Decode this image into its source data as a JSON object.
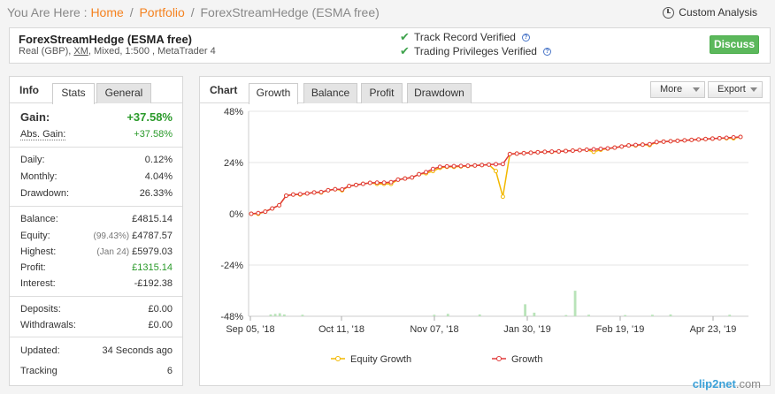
{
  "breadcrumb": {
    "prefix": "You Are Here :",
    "home": "Home",
    "portfolio": "Portfolio",
    "current": "ForexStreamHedge (ESMA free)",
    "sep": "/"
  },
  "custom_analysis": "Custom Analysis",
  "account": {
    "name": "ForexStreamHedge (ESMA free)",
    "info_prefix": "Real (GBP), ",
    "broker": "XM",
    "info_suffix": ", Mixed, 1:500 , MetaTrader 4"
  },
  "verified": {
    "track_record": "Track Record Verified",
    "trading_privileges": "Trading Privileges Verified",
    "help": "?"
  },
  "discuss_label": "Discuss",
  "info": {
    "title": "Info",
    "tabs": [
      "Stats",
      "General"
    ],
    "gain": {
      "label": "Gain:",
      "value": "+37.58%"
    },
    "abs_gain": {
      "label": "Abs. Gain:",
      "value": "+37.58%"
    },
    "daily": {
      "label": "Daily:",
      "value": "0.12%"
    },
    "monthly": {
      "label": "Monthly:",
      "value": "4.04%"
    },
    "drawdown": {
      "label": "Drawdown:",
      "value": "26.33%"
    },
    "balance": {
      "label": "Balance:",
      "value": "£4815.14"
    },
    "equity": {
      "label": "Equity:",
      "sub": "(99.43%)",
      "value": "£4787.57"
    },
    "highest": {
      "label": "Highest:",
      "sub": "(Jan 24)",
      "value": "£5979.03"
    },
    "profit": {
      "label": "Profit:",
      "value": "£1315.14"
    },
    "interest": {
      "label": "Interest:",
      "value": "-£192.38"
    },
    "deposits": {
      "label": "Deposits:",
      "value": "£0.00"
    },
    "withdrawals": {
      "label": "Withdrawals:",
      "value": "£0.00"
    },
    "updated": {
      "label": "Updated:",
      "value": "34 Seconds ago"
    },
    "tracking": {
      "label": "Tracking",
      "value": "6"
    }
  },
  "chart_panel": {
    "title": "Chart",
    "tabs": [
      "Growth",
      "Balance",
      "Profit",
      "Drawdown"
    ],
    "more": "More",
    "export": "Export"
  },
  "chart_data": {
    "type": "line",
    "x_ticks": [
      "Sep 05, '18",
      "Oct 11, '18",
      "Nov 07, '18",
      "Jan 30, '19",
      "Feb 19, '19",
      "Apr 23, '19"
    ],
    "y_ticks": [
      "48%",
      "24%",
      "0%",
      "-24%",
      "-48%"
    ],
    "ylim": [
      -48,
      48
    ],
    "grid": true,
    "legend_position": "bottom",
    "series": [
      {
        "name": "Equity Growth",
        "color": "#f2b800",
        "values": [
          0,
          0,
          1,
          2.5,
          4,
          8.5,
          9,
          9,
          9.5,
          10,
          10,
          11,
          11.5,
          11,
          13,
          13.5,
          14,
          14.5,
          14,
          14,
          14,
          16,
          16.5,
          17,
          18.5,
          19,
          20,
          21.5,
          22,
          22,
          22.2,
          22.4,
          22.6,
          22.8,
          23,
          20,
          8,
          28,
          28.2,
          28.4,
          28.6,
          28.8,
          29,
          29,
          29.2,
          29.4,
          29.6,
          29.8,
          30,
          29,
          30,
          30.5,
          31,
          31.5,
          32,
          32,
          32.4,
          32.2,
          33.5,
          33.8,
          34,
          34.2,
          34.4,
          34.6,
          34.8,
          35,
          35.2,
          35.4,
          35.4,
          35.4,
          36
        ]
      },
      {
        "name": "Growth",
        "color": "#e03a3a",
        "values": [
          0,
          0.3,
          1,
          2.5,
          4,
          8.5,
          9,
          9.2,
          9.5,
          10,
          10.2,
          11,
          11.5,
          11.4,
          13,
          13.5,
          14,
          14.5,
          14.6,
          14.6,
          14.8,
          16,
          16.5,
          17,
          18.5,
          19.5,
          21,
          22,
          22.2,
          22.3,
          22.4,
          22.5,
          22.6,
          22.8,
          23,
          23.2,
          23.3,
          28,
          28.2,
          28.4,
          28.6,
          28.8,
          29,
          29.1,
          29.2,
          29.4,
          29.6,
          29.8,
          30,
          30.2,
          30.4,
          30.6,
          31,
          31.5,
          32,
          32.2,
          32.4,
          32.6,
          33.6,
          33.8,
          34,
          34.2,
          34.4,
          34.6,
          34.8,
          35,
          35.2,
          35.4,
          35.6,
          35.8,
          36
        ]
      }
    ],
    "bars": [
      0,
      0,
      0,
      0,
      0.6,
      0.8,
      1,
      0.6,
      0,
      0,
      0,
      0.5,
      0,
      0,
      0,
      0,
      0,
      0,
      0,
      0,
      0,
      0,
      0,
      0,
      0,
      0,
      0,
      0,
      0,
      0,
      0,
      0,
      0,
      0,
      0,
      0,
      0,
      0,
      0,
      0,
      0.5,
      0,
      0,
      0.8,
      0,
      0,
      0,
      0,
      0,
      0,
      0.6,
      0,
      0,
      0,
      0,
      0,
      0,
      0,
      0,
      0,
      4,
      0,
      1.2,
      0,
      0,
      0,
      0,
      0,
      0,
      0.4,
      0,
      8.5,
      0,
      0,
      0.5,
      0,
      0,
      0,
      0,
      0,
      0,
      0,
      0.4,
      0,
      0,
      0,
      0,
      0,
      0.5,
      0,
      0,
      0,
      0.6,
      0,
      0,
      0,
      0,
      0,
      0,
      0,
      0,
      0,
      0,
      0,
      0,
      0.5,
      0,
      0,
      0,
      0
    ]
  },
  "watermark": {
    "main": "clip2net",
    "suffix": ".com"
  }
}
